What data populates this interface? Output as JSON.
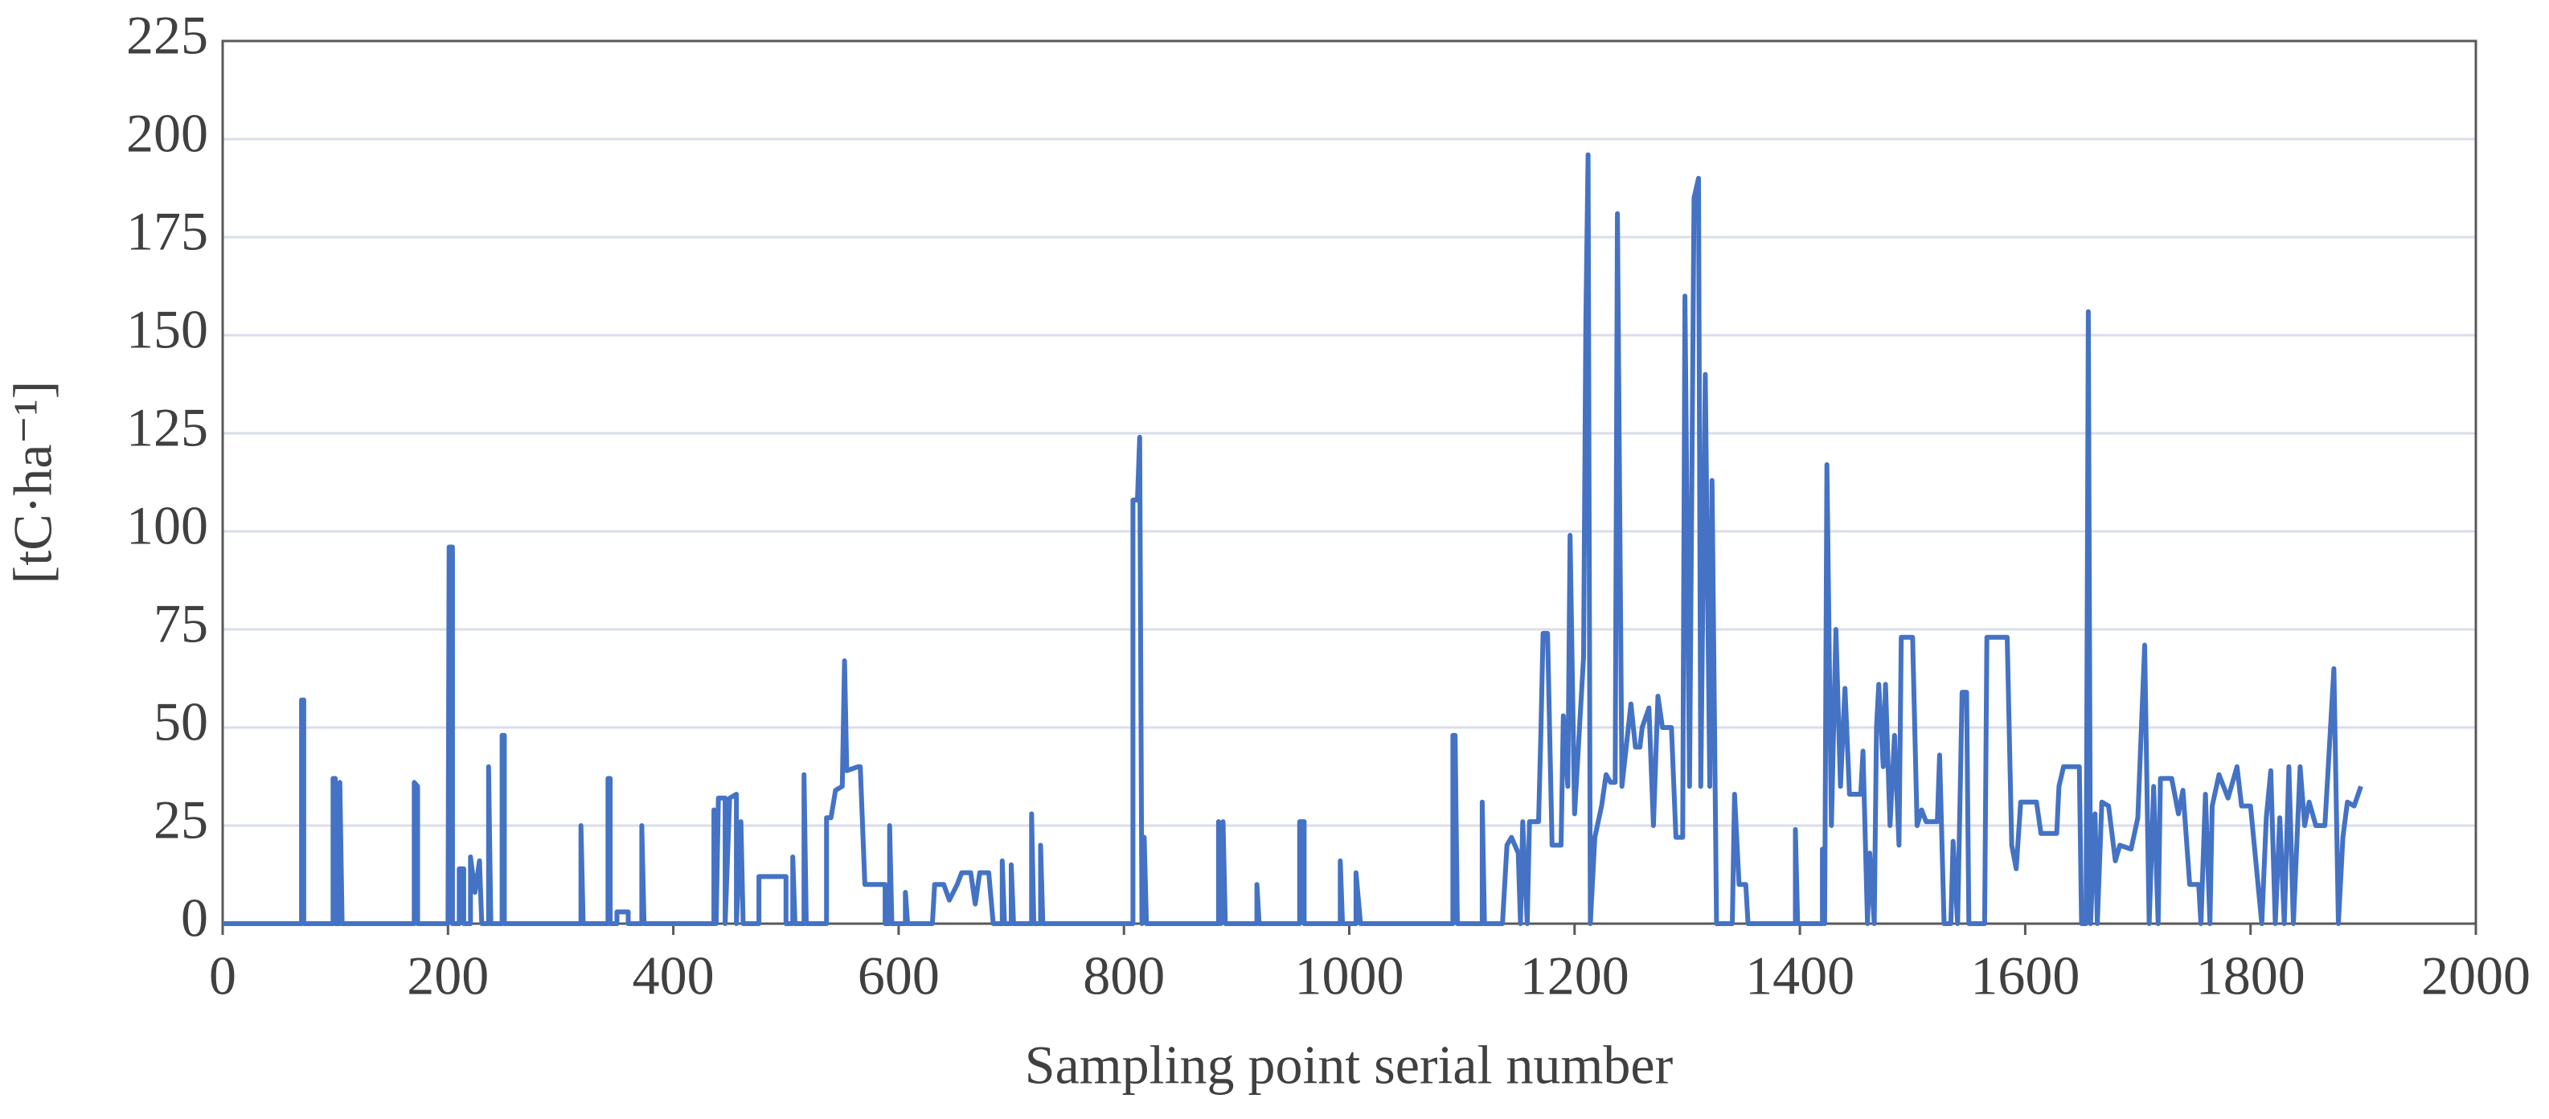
{
  "chart_data": {
    "type": "line",
    "xlabel": "Sampling point serial number",
    "ylabel": "[tC·ha⁻¹]",
    "xlim": [
      0,
      2000
    ],
    "xticks": [
      0,
      200,
      400,
      600,
      800,
      1000,
      1200,
      1400,
      1600,
      1800,
      2000
    ],
    "ylim": [
      0,
      225
    ],
    "yticks": [
      0,
      25,
      50,
      75,
      100,
      125,
      150,
      175,
      200,
      225
    ],
    "grid": true,
    "series": [
      {
        "color": "#4472c4",
        "x": [
          0,
          70,
          70,
          72,
          72,
          98,
          98,
          100,
          100,
          104,
          104,
          106,
          170,
          170,
          173,
          173,
          200,
          201,
          204,
          204,
          210,
          210,
          214,
          214,
          220,
          220,
          224,
          228,
          230,
          236,
          236,
          238,
          248,
          248,
          250,
          250,
          318,
          318,
          320,
          342,
          342,
          344,
          344,
          350,
          350,
          360,
          360,
          372,
          372,
          374,
          436,
          436,
          438,
          440,
          446,
          446,
          450,
          456,
          456,
          460,
          462,
          476,
          476,
          500,
          500,
          506,
          506,
          508,
          516,
          516,
          518,
          536,
          536,
          540,
          544,
          550,
          552,
          554,
          564,
          566,
          570,
          588,
          588,
          592,
          592,
          594,
          606,
          606,
          608,
          630,
          632,
          640,
          645,
          652,
          656,
          664,
          668,
          672,
          680,
          684,
          692,
          692,
          694,
          700,
          700,
          702,
          718,
          718,
          720,
          726,
          726,
          728,
          808,
          808,
          812,
          814,
          816,
          818,
          820,
          884,
          884,
          886,
          888,
          890,
          918,
          918,
          920,
          956,
          956,
          960,
          960,
          992,
          992,
          994,
          1006,
          1006,
          1010,
          1092,
          1092,
          1094,
          1096,
          1118,
          1118,
          1120,
          1136,
          1140,
          1144,
          1150,
          1152,
          1154,
          1158,
          1160,
          1168,
          1170,
          1172,
          1176,
          1180,
          1188,
          1190,
          1194,
          1196,
          1200,
          1204,
          1208,
          1210,
          1212,
          1214,
          1218,
          1224,
          1228,
          1232,
          1236,
          1238,
          1242,
          1250,
          1254,
          1258,
          1260,
          1266,
          1270,
          1274,
          1278,
          1286,
          1290,
          1296,
          1298,
          1302,
          1306,
          1310,
          1312,
          1316,
          1320,
          1322,
          1326,
          1340,
          1342,
          1346,
          1352,
          1354,
          1396,
          1396,
          1398,
          1420,
          1420,
          1422,
          1424,
          1428,
          1432,
          1436,
          1440,
          1444,
          1454,
          1456,
          1460,
          1462,
          1466,
          1468,
          1470,
          1474,
          1476,
          1480,
          1484,
          1488,
          1490,
          1500,
          1504,
          1508,
          1512,
          1522,
          1524,
          1528,
          1534,
          1536,
          1540,
          1544,
          1548,
          1550,
          1564,
          1566,
          1584,
          1588,
          1592,
          1596,
          1610,
          1614,
          1628,
          1630,
          1634,
          1648,
          1650,
          1654,
          1656,
          1658,
          1662,
          1664,
          1668,
          1674,
          1680,
          1684,
          1694,
          1700,
          1706,
          1710,
          1714,
          1718,
          1720,
          1730,
          1736,
          1740,
          1746,
          1754,
          1756,
          1760,
          1764,
          1766,
          1772,
          1780,
          1788,
          1792,
          1800,
          1810,
          1814,
          1818,
          1822,
          1826,
          1830,
          1834,
          1838,
          1844,
          1848,
          1852,
          1858,
          1866,
          1870,
          1874,
          1878,
          1882,
          1886,
          1892,
          1898
        ],
        "values": [
          0,
          0,
          57,
          57,
          0,
          0,
          37,
          37,
          0,
          0,
          36,
          0,
          0,
          36,
          35,
          0,
          0,
          96,
          96,
          0,
          0,
          14,
          14,
          0,
          0,
          17,
          8,
          16,
          0,
          0,
          40,
          0,
          0,
          48,
          48,
          0,
          0,
          25,
          0,
          0,
          37,
          37,
          0,
          0,
          3,
          3,
          0,
          0,
          25,
          0,
          0,
          29,
          0,
          32,
          32,
          0,
          32,
          33,
          0,
          26,
          0,
          0,
          12,
          12,
          0,
          0,
          17,
          0,
          0,
          38,
          0,
          0,
          27,
          27,
          34,
          35,
          67,
          39,
          40,
          40,
          10,
          10,
          0,
          0,
          25,
          0,
          0,
          8,
          0,
          0,
          10,
          10,
          6,
          10,
          13,
          13,
          5,
          13,
          13,
          0,
          0,
          16,
          0,
          0,
          15,
          0,
          0,
          28,
          0,
          0,
          20,
          0,
          0,
          108,
          108,
          124,
          0,
          22,
          0,
          0,
          26,
          0,
          26,
          0,
          0,
          10,
          0,
          0,
          26,
          26,
          0,
          0,
          16,
          0,
          0,
          13,
          0,
          0,
          48,
          48,
          0,
          0,
          31,
          0,
          0,
          20,
          22,
          18,
          0,
          26,
          0,
          26,
          26,
          48,
          74,
          74,
          20,
          20,
          53,
          35,
          99,
          28,
          48,
          68,
          153,
          196,
          0,
          22,
          30,
          38,
          36,
          36,
          181,
          35,
          56,
          45,
          45,
          50,
          55,
          25,
          58,
          50,
          50,
          22,
          22,
          160,
          35,
          185,
          190,
          35,
          140,
          35,
          113,
          0,
          0,
          33,
          10,
          10,
          0,
          0,
          24,
          0,
          0,
          19,
          0,
          117,
          25,
          75,
          35,
          60,
          33,
          33,
          44,
          0,
          18,
          0,
          50,
          61,
          40,
          61,
          25,
          48,
          20,
          73,
          73,
          25,
          29,
          26,
          26,
          43,
          0,
          0,
          21,
          0,
          59,
          59,
          0,
          0,
          73,
          73,
          20,
          14,
          31,
          31,
          23,
          23,
          35,
          40,
          40,
          0,
          0,
          156,
          0,
          28,
          0,
          31,
          30,
          16,
          20,
          19,
          27,
          71,
          0,
          35,
          0,
          37,
          37,
          28,
          34,
          10,
          10,
          0,
          33,
          0,
          30,
          38,
          32,
          40,
          30,
          30,
          0,
          27,
          39,
          0,
          27,
          0,
          40,
          0,
          40,
          25,
          31,
          25,
          25,
          45,
          65,
          0,
          22,
          31,
          30,
          35
        ]
      }
    ]
  }
}
